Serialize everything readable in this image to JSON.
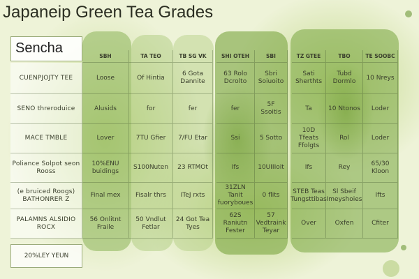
{
  "header": {
    "title": "Japaneip Green Tea Grades",
    "label": "Sencha"
  },
  "table": {
    "columns": [
      "SBH",
      "TA TEO",
      "TB SG VK",
      "SHI OTEH",
      "SBI",
      "TZ GTEE",
      "TBO",
      "TE SOOBC"
    ],
    "rows": [
      [
        "CUENPJOJTY TEE",
        "Loose",
        "Of Hintia",
        "6 Gota Dannite",
        "63 Rolo Dcrolto",
        "Sbri Soiuoito",
        "Sati Sherthts",
        "Tubd Dormlo",
        "10 Nreys"
      ],
      [
        "SENO threroduice",
        "Alusids",
        "for",
        "fer",
        "fer",
        "5F Ssoitis",
        "Ta",
        "10 Ntonos",
        "Loder"
      ],
      [
        "MACE TMBLE",
        "Lover",
        "7TU Gfier",
        "7/FU Etar",
        "Ssi",
        "5 Sotto",
        "10D Tfeats Ffolgts",
        "Rol",
        "Loder"
      ],
      [
        "Poliance Solpot seon Rooss",
        "10%ENU buidings",
        "S100Nuten",
        "23 RTMOt",
        "Ifs",
        "10UIIIoit",
        "Ifs",
        "Rey",
        "65/30 Kloon"
      ],
      [
        "(e bruiced Roogs) BATHONRER Z",
        "Final mex",
        "Fisalr thrs",
        "ITeJ rxts",
        "31ZLN Tanit fuoryboues",
        "0 flits",
        "STEB Teas Tungsttibas",
        "Sl Sbeif Imeyshoies",
        "Ifts"
      ],
      [
        "PALAMNS ALSIDIO ROCX",
        "56 Onlitnt Fraile",
        "50 Vndlut Fetlar",
        "24 Got Tea Tyes",
        "62S Raniutn Fester",
        "57 Vedtraink Teyar",
        "Over",
        "Oxfen",
        "Cfiter"
      ]
    ]
  },
  "footer": "20%LEY YEUN"
}
